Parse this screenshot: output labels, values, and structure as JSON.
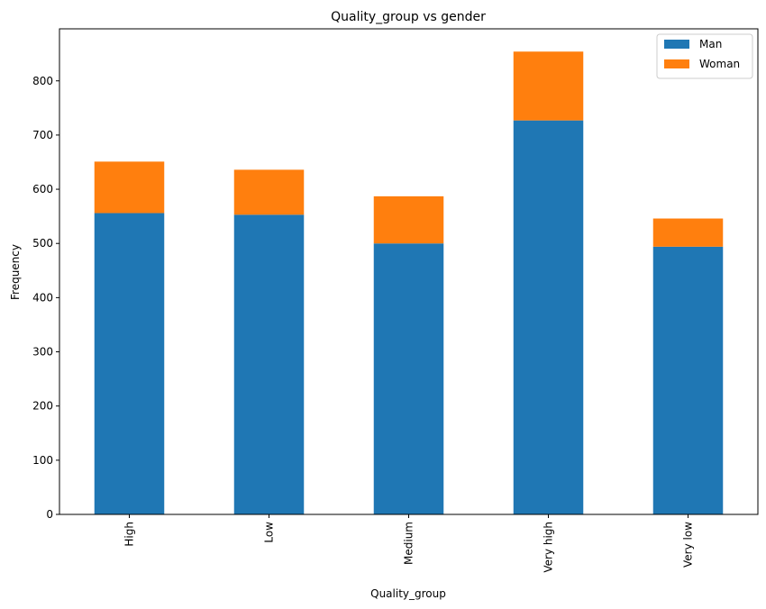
{
  "chart_data": {
    "type": "bar",
    "stacked": true,
    "title": "Quality_group vs gender",
    "xlabel": "Quality_group",
    "ylabel": "Frequency",
    "categories": [
      "High",
      "Low",
      "Medium",
      "Very high",
      "Very low"
    ],
    "series": [
      {
        "name": "Man",
        "values": [
          556,
          553,
          500,
          727,
          494
        ],
        "color": "#1f77b4"
      },
      {
        "name": "Woman",
        "values": [
          95,
          83,
          87,
          127,
          52
        ],
        "color": "#ff7f0e"
      }
    ],
    "ylim": [
      0,
      896
    ],
    "yticks": [
      0,
      100,
      200,
      300,
      400,
      500,
      600,
      700,
      800
    ],
    "grid": false,
    "legend_position": "top-right"
  }
}
